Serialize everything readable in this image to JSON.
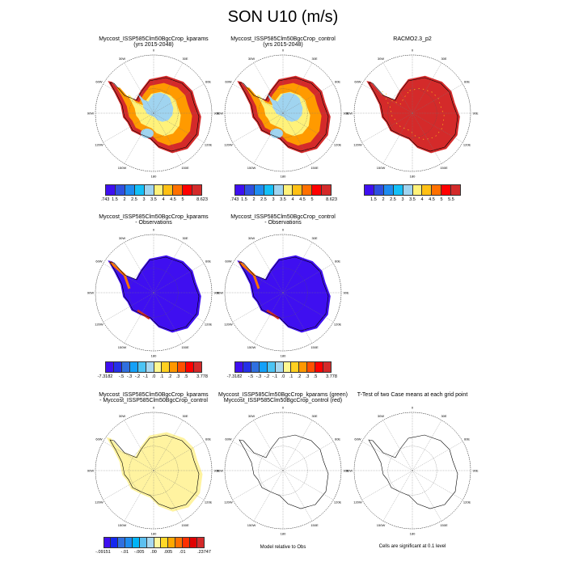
{
  "title": "SON U10 (m/s)",
  "lon_labels": [
    "0",
    "30E",
    "60E",
    "90E",
    "120E",
    "150E",
    "180",
    "150W",
    "120W",
    "90W",
    "60W",
    "30W"
  ],
  "panels": [
    {
      "title1": "Myccost_ISSP585Clm50BgcCrop_kparams",
      "title2": "(yrs 2015-2048)",
      "style": "field"
    },
    {
      "title1": "Myccost_ISSP585Clm50BgcCrop_control",
      "title2": "(yrs 2015-2048)",
      "style": "field"
    },
    {
      "title1": "RACMO2.3_p2",
      "title2": "",
      "style": "obs"
    },
    {
      "title1": "Myccost_ISSP585Clm50BgcCrop_kparams",
      "title2": "- Observations",
      "style": "diff"
    },
    {
      "title1": "Myccost_ISSP585Clm50BgcCrop_control",
      "title2": "- Observations",
      "style": "diff"
    },
    {
      "title1": "Myccost_ISSP585Clm50BgcCrop_kparams",
      "title2": "- Myccost_ISSP585Clm50BgcCrop_control",
      "style": "mdiff"
    },
    {
      "title1": "Myccost_ISSP585Clm50BgcCrop_kparams (green)",
      "title2": "Myccost_ISSP585Clm50BgcCrop_control (red)",
      "style": "outline"
    },
    {
      "title1": "T-Test of two Case means at each grid point",
      "title2": "",
      "style": "outline"
    }
  ],
  "notes": [
    "Model relative to Obs",
    "Cells are significant at 0.1 level"
  ],
  "colorbars": [
    {
      "colors": [
        "#3f0ff0",
        "#2e50e0",
        "#1e8cf0",
        "#14c0f8",
        "#a0d4f0",
        "#fff27a",
        "#ffc014",
        "#ff7000",
        "#ff0000",
        "#d42a2a"
      ],
      "labels": [
        ".743",
        "1.5",
        "2",
        "2.5",
        "3",
        "3.5",
        "4",
        "4.5",
        "5",
        "",
        "8.623"
      ]
    },
    {
      "colors": [
        "#3f0ff0",
        "#2e50e0",
        "#1e8cf0",
        "#14c0f8",
        "#a0d4f0",
        "#fff27a",
        "#ffc014",
        "#ff7000",
        "#ff0000",
        "#d42a2a"
      ],
      "labels": [
        ".743",
        "1.5",
        "2",
        "2.5",
        "3",
        "3.5",
        "4",
        "4.5",
        "5",
        "",
        "8.623"
      ]
    },
    {
      "colors": [
        "#3f0ff0",
        "#2e50e0",
        "#1e8cf0",
        "#14c0f8",
        "#a0d4f0",
        "#fff27a",
        "#ffc014",
        "#ff7000",
        "#ff0000",
        "#d42a2a"
      ],
      "labels": [
        "",
        "1.5",
        "2",
        "2.5",
        "3",
        "3.5",
        "4",
        "4.5",
        "5",
        "5.5",
        ""
      ]
    },
    {
      "colors": [
        "#3f0ff0",
        "#2430e8",
        "#3070e0",
        "#14a0f8",
        "#4cc4f4",
        "#a8d8f0",
        "#fff890",
        "#ffd020",
        "#ff9800",
        "#ff5000",
        "#ff0000",
        "#d42a2a"
      ],
      "labels": [
        "-7.3182",
        "",
        "-.5",
        "-.3",
        "-.2",
        "-.1",
        ".0",
        ".1",
        ".2",
        ".3",
        ".5",
        "",
        "3.778"
      ]
    },
    {
      "colors": [
        "#3f0ff0",
        "#2430e8",
        "#3070e0",
        "#14a0f8",
        "#4cc4f4",
        "#a8d8f0",
        "#fff890",
        "#ffd020",
        "#ff9800",
        "#ff5000",
        "#ff0000",
        "#d42a2a"
      ],
      "labels": [
        "-7.3182",
        "",
        "-.5",
        "-.3",
        "-.2",
        "-.1",
        ".0",
        ".1",
        ".2",
        ".3",
        ".5",
        "",
        "3.778"
      ]
    },
    {
      "colors": [
        "#3f0ff0",
        "#1428f0",
        "#3070e0",
        "#1e8cf0",
        "#00b4f8",
        "#5cc0f0",
        "#a8d8f0",
        "#fff8a0",
        "#ffd828",
        "#ffa800",
        "#ff7000",
        "#ff3000",
        "#e00000",
        "#d42a2a"
      ],
      "labels": [
        "-.09151",
        "",
        "",
        "-.01",
        "",
        "-.005",
        "",
        ".00",
        "",
        ".005",
        "",
        ".01",
        "",
        "",
        ".23747"
      ]
    }
  ],
  "colors": {
    "field_outer": "#d42a2a",
    "field_mid": "#ff9a00",
    "field_inner": "#fff27a",
    "field_core": "#a0d4f0",
    "obs": "#d42a2a",
    "diff": "#3f0ff0",
    "mdiff": "#fff3a0"
  }
}
